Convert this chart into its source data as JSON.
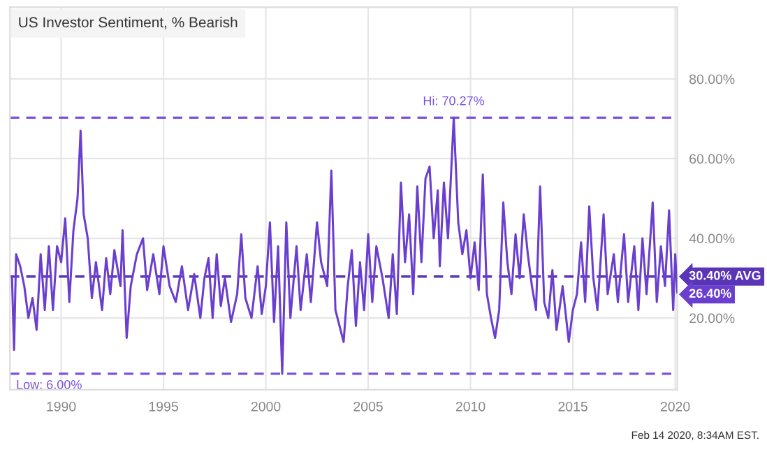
{
  "chart_data": {
    "type": "line",
    "title": "US Investor Sentiment, % Bearish",
    "x": [
      1987.6,
      1987.7,
      1987.8,
      1988.0,
      1988.2,
      1988.4,
      1988.6,
      1988.8,
      1989.0,
      1989.2,
      1989.4,
      1989.6,
      1989.8,
      1990.0,
      1990.2,
      1990.4,
      1990.6,
      1990.8,
      1990.95,
      1991.1,
      1991.3,
      1991.5,
      1991.7,
      1992.0,
      1992.2,
      1992.4,
      1992.6,
      1992.9,
      1993.0,
      1993.2,
      1993.4,
      1993.7,
      1994.0,
      1994.2,
      1994.5,
      1994.8,
      1995.0,
      1995.3,
      1995.6,
      1995.9,
      1996.2,
      1996.5,
      1996.8,
      1997.0,
      1997.2,
      1997.4,
      1997.6,
      1997.8,
      1998.0,
      1998.3,
      1998.6,
      1998.8,
      1999.0,
      1999.3,
      1999.6,
      1999.8,
      2000.0,
      2000.2,
      2000.4,
      2000.6,
      2000.8,
      2001.0,
      2001.2,
      2001.5,
      2001.7,
      2002.0,
      2002.2,
      2002.5,
      2002.7,
      2003.0,
      2003.2,
      2003.4,
      2003.6,
      2003.8,
      2004.0,
      2004.2,
      2004.4,
      2004.6,
      2004.8,
      2005.0,
      2005.2,
      2005.4,
      2005.7,
      2006.0,
      2006.2,
      2006.4,
      2006.6,
      2006.8,
      2007.0,
      2007.2,
      2007.4,
      2007.6,
      2007.8,
      2008.0,
      2008.2,
      2008.4,
      2008.5,
      2008.7,
      2008.9,
      2009.18,
      2009.4,
      2009.6,
      2009.8,
      2010.0,
      2010.2,
      2010.4,
      2010.6,
      2010.8,
      2011.0,
      2011.2,
      2011.4,
      2011.6,
      2011.8,
      2012.0,
      2012.2,
      2012.4,
      2012.6,
      2012.8,
      2013.0,
      2013.2,
      2013.4,
      2013.6,
      2013.8,
      2014.0,
      2014.2,
      2014.5,
      2014.8,
      2015.0,
      2015.2,
      2015.4,
      2015.6,
      2015.8,
      2016.0,
      2016.2,
      2016.5,
      2016.7,
      2017.0,
      2017.2,
      2017.5,
      2017.7,
      2018.0,
      2018.2,
      2018.4,
      2018.6,
      2018.9,
      2019.1,
      2019.3,
      2019.5,
      2019.7,
      2019.9,
      2020.0,
      2020.1
    ],
    "series": [
      {
        "color": "#6a3fcf",
        "values": [
          30,
          12,
          36,
          33,
          28,
          20,
          25,
          17,
          36,
          22,
          38,
          22,
          38,
          34,
          45,
          24,
          42,
          50,
          67,
          46,
          40,
          25,
          34,
          22,
          35,
          26,
          37,
          28,
          42,
          15,
          28,
          36,
          40,
          27,
          36,
          26,
          38,
          28,
          24,
          33,
          22,
          31,
          20,
          30,
          35,
          20,
          36,
          23,
          30,
          19,
          26,
          41,
          25,
          20,
          33,
          21,
          28,
          44,
          19,
          38,
          6,
          44,
          20,
          38,
          22,
          36,
          24,
          44,
          34,
          28,
          57,
          22,
          18,
          14,
          28,
          37,
          18,
          34,
          22,
          41,
          24,
          38,
          30,
          20,
          36,
          21,
          54,
          34,
          46,
          26,
          53,
          34,
          55,
          58,
          40,
          52,
          33,
          54,
          40,
          70.27,
          44,
          36,
          42,
          30,
          39,
          27,
          56,
          26,
          20,
          15,
          22,
          49,
          34,
          26,
          41,
          30,
          46,
          36,
          28,
          22,
          53,
          24,
          20,
          32,
          17,
          28,
          14,
          22,
          26,
          39,
          24,
          48,
          30,
          22,
          46,
          26,
          36,
          24,
          41,
          24,
          38,
          22,
          40,
          26,
          49,
          24,
          38,
          28,
          47,
          22,
          36,
          26.4
        ]
      }
    ],
    "xlim": [
      1987.5,
      2020.1
    ],
    "xticks": [
      1990,
      1995,
      2000,
      2005,
      2010,
      2015,
      2020
    ],
    "ylim": [
      2,
      98
    ],
    "yticks": [
      {
        "value": 20,
        "label": "20.00%"
      },
      {
        "value": 40,
        "label": "40.00%"
      },
      {
        "value": 60,
        "label": "60.00%"
      },
      {
        "value": 80,
        "label": "80.00%"
      }
    ],
    "ref_lines": [
      {
        "axis": "y",
        "value": 70.27,
        "label": "Hi: 70.27%",
        "color": "#7b52e0",
        "line_style": "dashed"
      },
      {
        "axis": "y",
        "value": 6.0,
        "label": "Low: 6.00%",
        "color": "#7b52e0",
        "line_style": "dashed"
      },
      {
        "axis": "y",
        "value": 30.4,
        "label": "30.40% AVG",
        "color": "#5b35b8",
        "line_style": "dashed"
      }
    ],
    "annotations": [
      {
        "text": "26.40%",
        "x": 2020.1,
        "y": 26.4
      },
      "Feb 14 2020, 8:34AM EST."
    ],
    "grid": true,
    "line_style": "solid",
    "marker": "none",
    "legend": false
  }
}
